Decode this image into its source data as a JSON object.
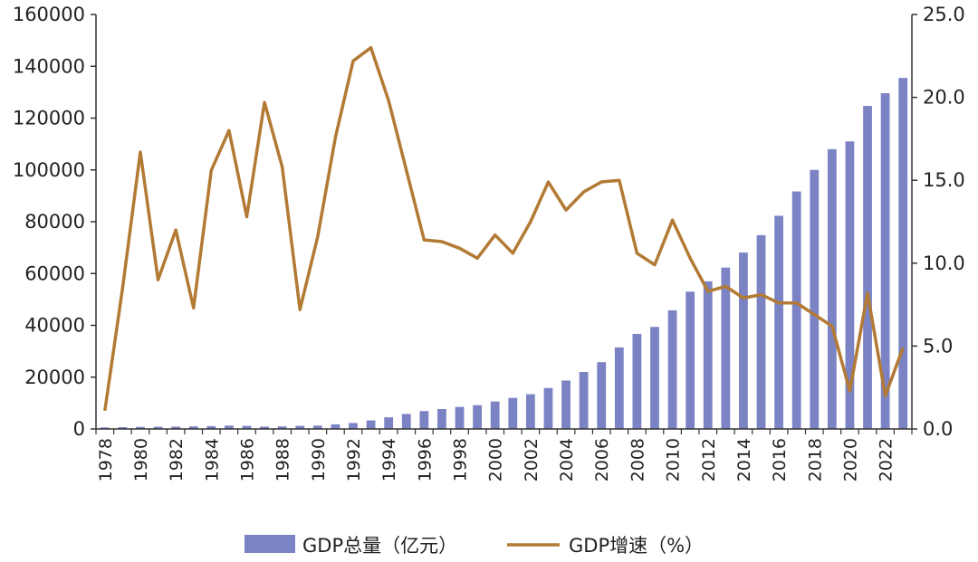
{
  "colors": {
    "bar": "#7b83c4",
    "line": "#b27a34",
    "axis": "#333333"
  },
  "chart_data": {
    "type": "bar+line",
    "title": "",
    "xlabel": "",
    "ylabel": "",
    "grid": false,
    "legend_position": "bottom-center",
    "x": [
      1978,
      1979,
      1980,
      1981,
      1982,
      1983,
      1984,
      1985,
      1986,
      1987,
      1988,
      1989,
      1990,
      1991,
      1992,
      1993,
      1994,
      1995,
      1996,
      1997,
      1998,
      1999,
      2000,
      2001,
      2002,
      2003,
      2004,
      2005,
      2006,
      2007,
      2008,
      2009,
      2010,
      2011,
      2012,
      2013,
      2014,
      2015,
      2016,
      2017,
      2018,
      2019,
      2020,
      2021,
      2022,
      2023
    ],
    "x_tick_labels": [
      "1978",
      "1980",
      "1982",
      "1984",
      "1986",
      "1988",
      "1990",
      "1992",
      "1994",
      "1996",
      "1998",
      "2000",
      "2002",
      "2004",
      "2006",
      "2008",
      "2010",
      "2012",
      "2014",
      "2016",
      "2018",
      "2020",
      "2022"
    ],
    "y_left": {
      "range": [
        0,
        160000
      ],
      "tick_labels": [
        "0",
        "20000",
        "40000",
        "60000",
        "80000",
        "100000",
        "120000",
        "140000",
        "160000"
      ]
    },
    "y_right": {
      "range": [
        0,
        25
      ],
      "tick_labels": [
        "0.0",
        "5.0",
        "10.0",
        "15.0",
        "20.0",
        "25.0"
      ]
    },
    "series": [
      {
        "name": "GDP总量（亿元）",
        "type": "bar",
        "axis": "left",
        "values": [
          600,
          700,
          800,
          850,
          900,
          1000,
          1100,
          1300,
          1200,
          900,
          1000,
          1200,
          1300,
          1800,
          2300,
          3300,
          4500,
          5800,
          6900,
          7700,
          8500,
          9200,
          10600,
          12000,
          13400,
          15800,
          18700,
          22000,
          25800,
          31500,
          36700,
          39400,
          45800,
          53000,
          57000,
          62300,
          68100,
          74800,
          82300,
          91700,
          100000,
          108000,
          111000,
          124700,
          129600,
          135500
        ]
      },
      {
        "name": "GDP增速（%）",
        "type": "line",
        "axis": "right",
        "values": [
          1.1,
          8.5,
          16.7,
          9.0,
          12.0,
          7.3,
          15.6,
          18.0,
          12.8,
          19.7,
          15.8,
          7.2,
          11.6,
          17.6,
          22.2,
          23.0,
          19.8,
          15.6,
          11.4,
          11.3,
          10.9,
          10.3,
          11.7,
          10.6,
          12.5,
          14.9,
          13.2,
          14.3,
          14.9,
          15.0,
          10.6,
          9.9,
          12.6,
          10.3,
          8.3,
          8.6,
          7.9,
          8.1,
          7.6,
          7.6,
          6.9,
          6.2,
          2.3,
          8.2,
          2.0,
          4.9
        ]
      }
    ]
  }
}
